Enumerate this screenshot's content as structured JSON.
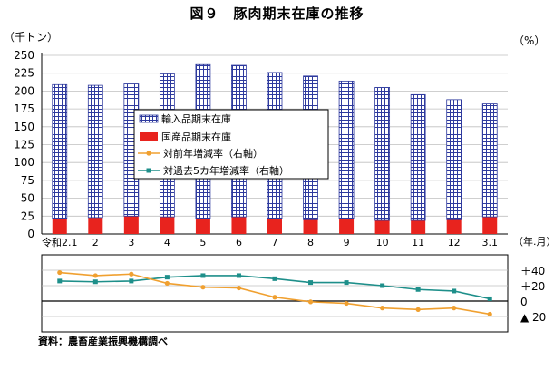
{
  "title": "図９　豚肉期末在庫の推移",
  "unit_left": "（千トン）",
  "unit_right": "（%）",
  "note": "資料：農畜産業振興機構調べ",
  "colors": {
    "import_fill": "#2e3a9e",
    "domestic_fill": "#e8231e",
    "yoy_line": "#f0a030",
    "five_year_line": "#1e8f8a"
  },
  "chart_data": {
    "type": "bar",
    "categories": [
      "令和2.1",
      "2",
      "3",
      "4",
      "5",
      "6",
      "7",
      "8",
      "9",
      "10",
      "11",
      "12",
      "3.1"
    ],
    "x_unit_label": "（年.月）",
    "ylim": [
      0,
      250
    ],
    "yticks": [
      0,
      25,
      50,
      75,
      100,
      125,
      150,
      175,
      200,
      225,
      250
    ],
    "series": [
      {
        "name": "輸入品期末在庫",
        "values": [
          187,
          185,
          185,
          200,
          215,
          212,
          205,
          201,
          193,
          186,
          176,
          168,
          158
        ]
      },
      {
        "name": "国産品期末在庫",
        "values": [
          22,
          23,
          25,
          24,
          22,
          24,
          21,
          20,
          21,
          19,
          19,
          20,
          24
        ]
      },
      {
        "name": "対前年増減率（右軸）",
        "values": [
          37,
          33,
          35,
          23,
          18,
          17,
          5,
          -1,
          -3,
          -9,
          -11,
          -9,
          -17
        ]
      },
      {
        "name": "対過去5カ年増減率（右軸）",
        "values": [
          26,
          25,
          26,
          31,
          33,
          33,
          29,
          24,
          24,
          20,
          15,
          13,
          3
        ]
      }
    ],
    "y2lim": [
      -40,
      60
    ],
    "y2ticks": [
      {
        "value": 40,
        "label": "＋40"
      },
      {
        "value": 20,
        "label": "＋20"
      },
      {
        "value": 0,
        "label": "0"
      },
      {
        "value": -20,
        "label": "▲ 20"
      }
    ],
    "grid": true,
    "legend_position": "center"
  }
}
